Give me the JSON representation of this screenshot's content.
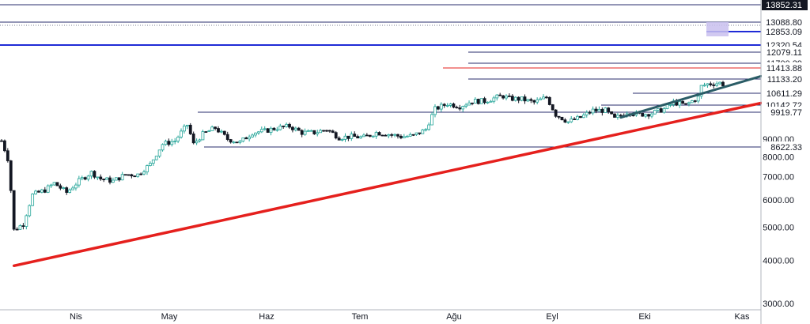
{
  "chart_data": {
    "type": "candlestick",
    "y_axis": {
      "scale": "log",
      "position": "right",
      "ticks": [
        3000,
        4000,
        5000,
        6000,
        7000,
        8000,
        9000
      ],
      "tick_labels": [
        "3000.00",
        "4000.00",
        "5000.00",
        "6000.00",
        "7000.00",
        "8000.00",
        "9000.00"
      ],
      "ylim": [
        3000,
        14000
      ]
    },
    "x_axis": {
      "tick_labels": [
        "Nis",
        "May",
        "Haz",
        "Tem",
        "Ağu",
        "Eyl",
        "Eki",
        "Kas"
      ]
    },
    "price_levels": [
      {
        "label": "13852.31",
        "value": 13852.31
      },
      {
        "label": "13088.80",
        "value": 13088.8
      },
      {
        "label": "12853.09",
        "value": 12853.09
      },
      {
        "label": "12320.54",
        "value": 12320.54
      },
      {
        "label": "12079.11",
        "value": 12079.11
      },
      {
        "label": "11700.29",
        "value": 11700.29
      },
      {
        "label": "11413.88",
        "value": 11413.88
      },
      {
        "label": "11133.20",
        "value": 11133.2
      },
      {
        "label": "10611.29",
        "value": 10611.29
      },
      {
        "label": "10142.72",
        "value": 10142.72
      },
      {
        "label": "9919.77",
        "value": 9919.77
      },
      {
        "label": "8622.33",
        "value": 8622.33
      }
    ],
    "trendlines": [
      {
        "color": "#e5201d",
        "from": [
          "2020-03-13",
          3860
        ],
        "to": [
          "2020-11-05",
          11450
        ]
      },
      {
        "color": "#2a5c66",
        "from": [
          "2020-09-25",
          10400
        ],
        "to": [
          "2020-11-05",
          13000
        ]
      }
    ],
    "close_series": [
      [
        "2020-03-09",
        8900
      ],
      [
        "2020-03-11",
        7900
      ],
      [
        "2020-03-13",
        4900
      ],
      [
        "2020-03-16",
        5100
      ],
      [
        "2020-03-19",
        6200
      ],
      [
        "2020-03-23",
        6400
      ],
      [
        "2020-03-26",
        6700
      ],
      [
        "2020-03-30",
        6300
      ],
      [
        "2020-04-03",
        6800
      ],
      [
        "2020-04-07",
        7200
      ],
      [
        "2020-04-10",
        6900
      ],
      [
        "2020-04-14",
        6800
      ],
      [
        "2020-04-18",
        7100
      ],
      [
        "2020-04-22",
        7100
      ],
      [
        "2020-04-26",
        7600
      ],
      [
        "2020-04-30",
        8700
      ],
      [
        "2020-05-04",
        8900
      ],
      [
        "2020-05-08",
        9900
      ],
      [
        "2020-05-10",
        8700
      ],
      [
        "2020-05-13",
        9300
      ],
      [
        "2020-05-17",
        9700
      ],
      [
        "2020-05-21",
        9000
      ],
      [
        "2020-05-25",
        8800
      ],
      [
        "2020-05-29",
        9400
      ],
      [
        "2020-06-02",
        9500
      ],
      [
        "2020-06-06",
        9700
      ],
      [
        "2020-06-10",
        9800
      ],
      [
        "2020-06-14",
        9400
      ],
      [
        "2020-06-18",
        9400
      ],
      [
        "2020-06-22",
        9600
      ],
      [
        "2020-06-26",
        9100
      ],
      [
        "2020-06-30",
        9150
      ],
      [
        "2020-07-04",
        9100
      ],
      [
        "2020-07-08",
        9400
      ],
      [
        "2020-07-12",
        9300
      ],
      [
        "2020-07-16",
        9150
      ],
      [
        "2020-07-20",
        9200
      ],
      [
        "2020-07-24",
        9600
      ],
      [
        "2020-07-27",
        11000
      ],
      [
        "2020-07-31",
        11400
      ],
      [
        "2020-08-04",
        11200
      ],
      [
        "2020-08-08",
        11600
      ],
      [
        "2020-08-12",
        11600
      ],
      [
        "2020-08-16",
        11900
      ],
      [
        "2020-08-18",
        12000
      ],
      [
        "2020-08-20",
        11800
      ],
      [
        "2020-08-24",
        11750
      ],
      [
        "2020-08-28",
        11500
      ],
      [
        "2020-09-01",
        11900
      ],
      [
        "2020-09-04",
        10600
      ],
      [
        "2020-09-08",
        10100
      ],
      [
        "2020-09-12",
        10400
      ],
      [
        "2020-09-16",
        10900
      ],
      [
        "2020-09-20",
        10900
      ],
      [
        "2020-09-23",
        10300
      ],
      [
        "2020-09-27",
        10800
      ],
      [
        "2020-10-01",
        10600
      ],
      [
        "2020-10-05",
        10700
      ],
      [
        "2020-10-09",
        11000
      ],
      [
        "2020-10-12",
        11500
      ],
      [
        "2020-10-16",
        11300
      ],
      [
        "2020-10-20",
        11900
      ],
      [
        "2020-10-21",
        12800
      ],
      [
        "2020-10-23",
        13000
      ],
      [
        "2020-10-25",
        13050
      ],
      [
        "2020-10-27",
        13100
      ],
      [
        "2020-10-28",
        13000
      ]
    ]
  },
  "colors": {
    "up": "#26a69a",
    "down": "#131722",
    "level_line": "#2a2e6e",
    "accent_blue": "#1f2bd6",
    "support_red": "#e5201d",
    "trend_teal": "#2a5c66",
    "zone_fill": "#c9c0ef"
  }
}
